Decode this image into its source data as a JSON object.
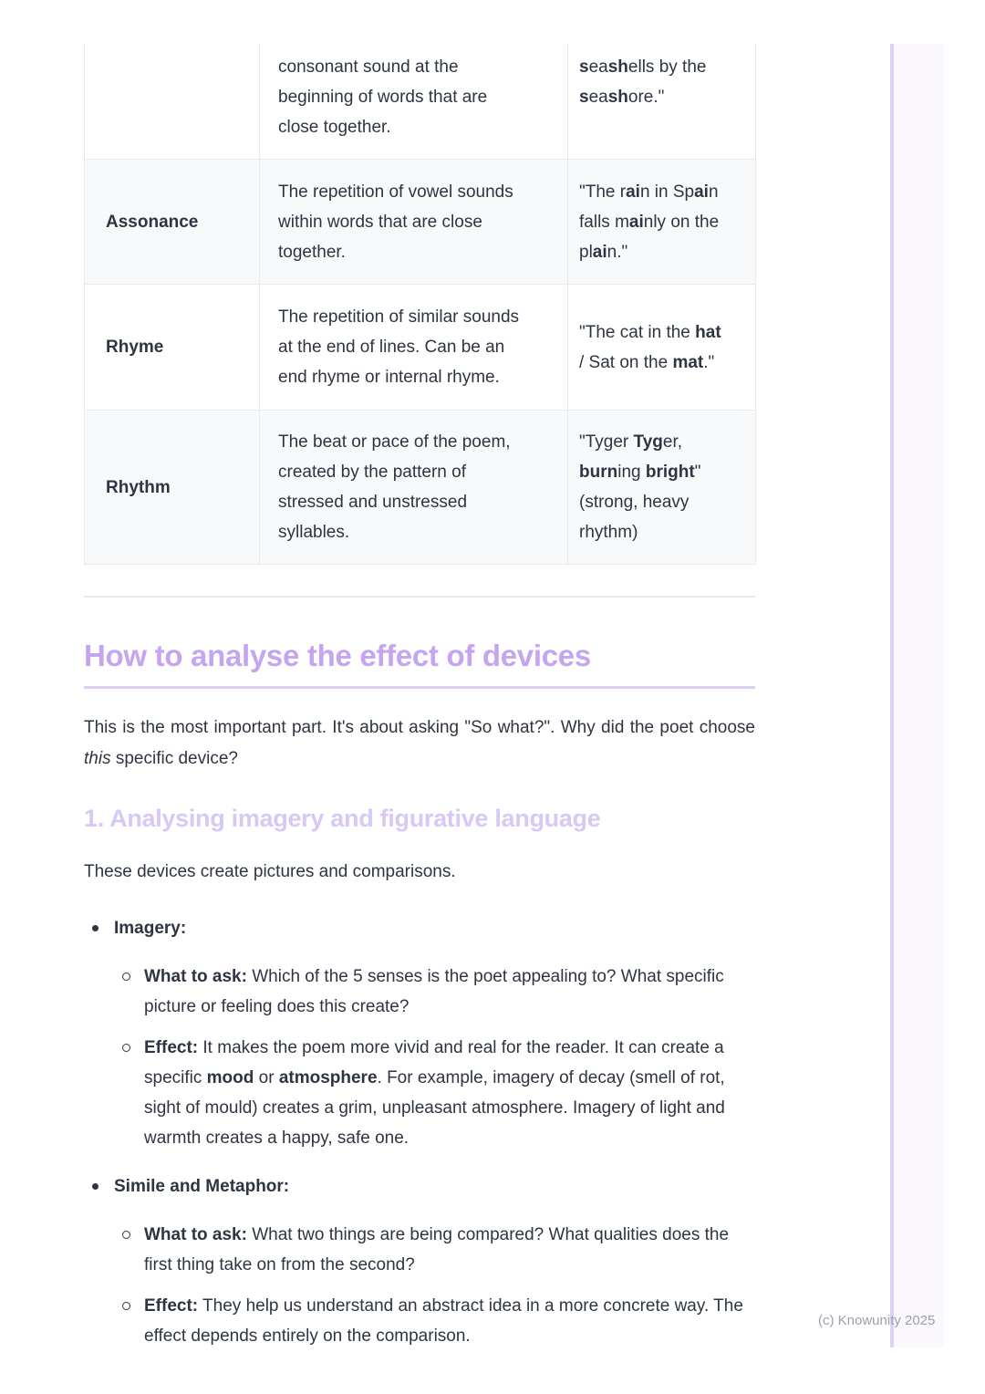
{
  "table": {
    "rows": [
      {
        "device": "",
        "description": "consonant sound at the\nbeginning of words that are\nclose together.",
        "example": [
          {
            "t": "s",
            "b": 1
          },
          {
            "t": "ea"
          },
          {
            "t": "sh",
            "b": 1
          },
          {
            "t": "ells by the\n"
          },
          {
            "t": "s",
            "b": 1
          },
          {
            "t": "ea"
          },
          {
            "t": "sh",
            "b": 1
          },
          {
            "t": "ore.\""
          }
        ]
      },
      {
        "device": "Assonance",
        "description": "The repetition of vowel sounds\nwithin words that are close\ntogether.",
        "example": [
          {
            "t": "\"The r"
          },
          {
            "t": "ai",
            "b": 1
          },
          {
            "t": "n in Sp"
          },
          {
            "t": "ai",
            "b": 1
          },
          {
            "t": "n\nfalls m"
          },
          {
            "t": "ai",
            "b": 1
          },
          {
            "t": "nly on the\npl"
          },
          {
            "t": "ai",
            "b": 1
          },
          {
            "t": "n.\""
          }
        ]
      },
      {
        "device": "Rhyme",
        "description": "The repetition of similar sounds\nat the end of lines. Can be an\nend rhyme or internal rhyme.",
        "example": [
          {
            "t": "\"The cat in the "
          },
          {
            "t": "hat",
            "b": 1
          },
          {
            "t": "\n/ Sat on the "
          },
          {
            "t": "mat",
            "b": 1
          },
          {
            "t": ".\""
          }
        ]
      },
      {
        "device": "Rhythm",
        "description": "The beat or pace of the poem,\ncreated by the pattern of\nstressed and unstressed\nsyllables.",
        "example": [
          {
            "t": "\"Tyger "
          },
          {
            "t": "Tyg",
            "b": 1
          },
          {
            "t": "er,\n"
          },
          {
            "t": "burn",
            "b": 1
          },
          {
            "t": "ing "
          },
          {
            "t": "bright",
            "b": 1
          },
          {
            "t": "\"\n(strong, heavy\nrhythm)"
          }
        ]
      }
    ]
  },
  "section": {
    "title": "How to analyse the effect of devices",
    "intro": [
      {
        "t": "This is the most important part. It's about asking \"So what?\". Why did the poet choose "
      },
      {
        "t": "this",
        "i": 1
      },
      {
        "t": " specific device?"
      }
    ],
    "subsection": {
      "title": "1. Analysing imagery and figurative language",
      "lead": "These devices create pictures and comparisons.",
      "bullets": [
        {
          "label": "Imagery:",
          "subs": [
            [
              {
                "t": "What to ask:",
                "b": 1
              },
              {
                "t": " Which of the 5 senses is the poet appealing to? What specific picture or feeling does this create?"
              }
            ],
            [
              {
                "t": "Effect:",
                "b": 1
              },
              {
                "t": " It makes the poem more vivid and real for the reader. It can create a specific "
              },
              {
                "t": "mood",
                "b": 1
              },
              {
                "t": " or "
              },
              {
                "t": "atmosphere",
                "b": 1
              },
              {
                "t": ". For example, imagery of decay (smell of rot, sight of mould) creates a grim, unpleasant atmosphere. Imagery of light and warmth creates a happy, safe one."
              }
            ]
          ]
        },
        {
          "label": "Simile and Metaphor:",
          "subs": [
            [
              {
                "t": "What to ask:",
                "b": 1
              },
              {
                "t": " What two things are being compared? What qualities does the first thing take on from the second?"
              }
            ],
            [
              {
                "t": "Effect:",
                "b": 1
              },
              {
                "t": " They help us understand an abstract idea in a more concrete way. The effect depends entirely on the comparison."
              }
            ]
          ]
        }
      ]
    }
  },
  "footer": {
    "watermark": "(c) Knowunity 2025"
  },
  "colors": {
    "heading": "#c5a5f0",
    "subheading": "#d7c8f5",
    "heading_underline": "#dbcdf5",
    "body_text": "#2e3542",
    "table_border": "#e8eaee",
    "table_row_alt": "#f8f9fb",
    "divider": "#e7e9ed",
    "watermark": "#9ba0ac",
    "strip_fill": "#faf8fd",
    "strip_line": "#ddd2f4"
  }
}
